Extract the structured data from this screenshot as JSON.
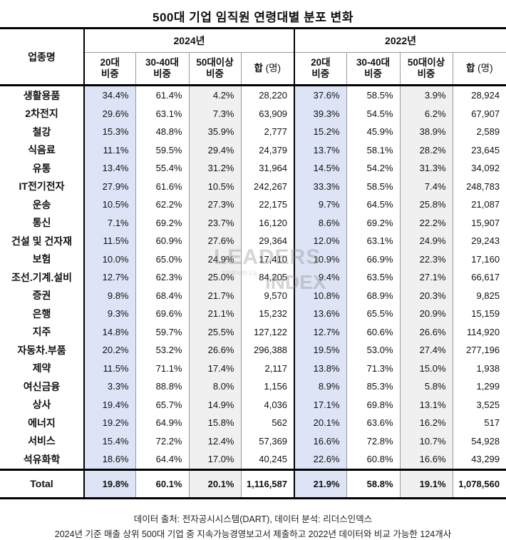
{
  "title": "500대 기업 임직원 연령대별 분포 변화",
  "table": {
    "industry_header": "업종명",
    "year_groups": [
      "2024년",
      "2022년"
    ],
    "sub_headers": [
      {
        "line1": "20대",
        "line2": "비중"
      },
      {
        "line1": "30-40대",
        "line2": "비중"
      },
      {
        "line1": "50대이상",
        "line2": "비중"
      },
      {
        "main": "합",
        "unit": "(명)"
      }
    ],
    "rows": [
      {
        "name": "생활용품",
        "y2024": [
          "34.4%",
          "61.4%",
          "4.2%",
          "28,220"
        ],
        "y2022": [
          "37.6%",
          "58.5%",
          "3.9%",
          "28,924"
        ]
      },
      {
        "name": "2차전지",
        "y2024": [
          "29.6%",
          "63.1%",
          "7.3%",
          "63,909"
        ],
        "y2022": [
          "39.3%",
          "54.5%",
          "6.2%",
          "67,907"
        ]
      },
      {
        "name": "철강",
        "y2024": [
          "15.3%",
          "48.8%",
          "35.9%",
          "2,777"
        ],
        "y2022": [
          "15.2%",
          "45.9%",
          "38.9%",
          "2,589"
        ]
      },
      {
        "name": "식음료",
        "y2024": [
          "11.1%",
          "59.5%",
          "29.4%",
          "24,379"
        ],
        "y2022": [
          "13.7%",
          "58.1%",
          "28.2%",
          "23,645"
        ]
      },
      {
        "name": "유통",
        "y2024": [
          "13.4%",
          "55.4%",
          "31.2%",
          "31,964"
        ],
        "y2022": [
          "14.5%",
          "54.2%",
          "31.3%",
          "34,092"
        ]
      },
      {
        "name": "IT전기전자",
        "y2024": [
          "27.9%",
          "61.6%",
          "10.5%",
          "242,267"
        ],
        "y2022": [
          "33.3%",
          "58.5%",
          "7.4%",
          "248,783"
        ]
      },
      {
        "name": "운송",
        "y2024": [
          "10.5%",
          "62.2%",
          "27.3%",
          "22,175"
        ],
        "y2022": [
          "9.7%",
          "64.5%",
          "25.8%",
          "21,087"
        ]
      },
      {
        "name": "통신",
        "y2024": [
          "7.1%",
          "69.2%",
          "23.7%",
          "16,120"
        ],
        "y2022": [
          "8.6%",
          "69.2%",
          "22.2%",
          "15,907"
        ]
      },
      {
        "name": "건설 및 건자재",
        "y2024": [
          "11.5%",
          "60.9%",
          "27.6%",
          "29,364"
        ],
        "y2022": [
          "12.0%",
          "63.1%",
          "24.9%",
          "29,243"
        ]
      },
      {
        "name": "보험",
        "y2024": [
          "10.0%",
          "65.0%",
          "24.9%",
          "17,410"
        ],
        "y2022": [
          "10.9%",
          "66.9%",
          "22.3%",
          "17,160"
        ]
      },
      {
        "name": "조선.기계.설비",
        "y2024": [
          "12.7%",
          "62.3%",
          "25.0%",
          "84,205"
        ],
        "y2022": [
          "9.4%",
          "63.5%",
          "27.1%",
          "66,617"
        ]
      },
      {
        "name": "증권",
        "y2024": [
          "9.8%",
          "68.4%",
          "21.7%",
          "9,570"
        ],
        "y2022": [
          "10.8%",
          "68.9%",
          "20.3%",
          "9,825"
        ]
      },
      {
        "name": "은행",
        "y2024": [
          "9.3%",
          "69.6%",
          "21.1%",
          "15,232"
        ],
        "y2022": [
          "13.6%",
          "65.5%",
          "20.9%",
          "15,159"
        ]
      },
      {
        "name": "지주",
        "y2024": [
          "14.8%",
          "59.7%",
          "25.5%",
          "127,122"
        ],
        "y2022": [
          "12.7%",
          "60.6%",
          "26.6%",
          "114,920"
        ]
      },
      {
        "name": "자동차.부품",
        "y2024": [
          "20.2%",
          "53.2%",
          "26.6%",
          "296,388"
        ],
        "y2022": [
          "19.5%",
          "53.0%",
          "27.4%",
          "277,196"
        ]
      },
      {
        "name": "제약",
        "y2024": [
          "11.5%",
          "71.1%",
          "17.4%",
          "2,117"
        ],
        "y2022": [
          "13.8%",
          "71.3%",
          "15.0%",
          "1,938"
        ]
      },
      {
        "name": "여신금융",
        "y2024": [
          "3.3%",
          "88.8%",
          "8.0%",
          "1,156"
        ],
        "y2022": [
          "8.9%",
          "85.3%",
          "5.8%",
          "1,299"
        ]
      },
      {
        "name": "상사",
        "y2024": [
          "19.4%",
          "65.7%",
          "14.9%",
          "4,036"
        ],
        "y2022": [
          "17.1%",
          "69.8%",
          "13.1%",
          "3,525"
        ]
      },
      {
        "name": "에너지",
        "y2024": [
          "19.2%",
          "64.9%",
          "15.8%",
          "562"
        ],
        "y2022": [
          "20.1%",
          "63.6%",
          "16.2%",
          "517"
        ]
      },
      {
        "name": "서비스",
        "y2024": [
          "15.4%",
          "72.2%",
          "12.4%",
          "57,369"
        ],
        "y2022": [
          "16.6%",
          "72.8%",
          "10.7%",
          "54,928"
        ]
      },
      {
        "name": "석유화학",
        "y2024": [
          "18.6%",
          "64.4%",
          "17.0%",
          "40,245"
        ],
        "y2022": [
          "22.6%",
          "60.8%",
          "16.6%",
          "43,299"
        ]
      }
    ],
    "total": {
      "name": "Total",
      "y2024": [
        "19.8%",
        "60.1%",
        "20.1%",
        "1,116,587"
      ],
      "y2022": [
        "21.9%",
        "58.8%",
        "19.1%",
        "1,078,560"
      ]
    }
  },
  "watermark": {
    "line1": "LEADERS",
    "sub": "기업분석연구소",
    "line2": "INDEX"
  },
  "footer": {
    "source": "데이터 출처: 전자공시시스템(DART), 데이터 분석: 리더스인덱스",
    "note": "2024년 기준 매출 상위 500대 기업 중 지속가능경영보고서 제출하고 2022년 데이터와 비교 가능한 124개사"
  },
  "colors": {
    "col_20s_fill": "#dde4f5",
    "col_50plus_fill": "#f0f0f0",
    "border": "#000000"
  }
}
